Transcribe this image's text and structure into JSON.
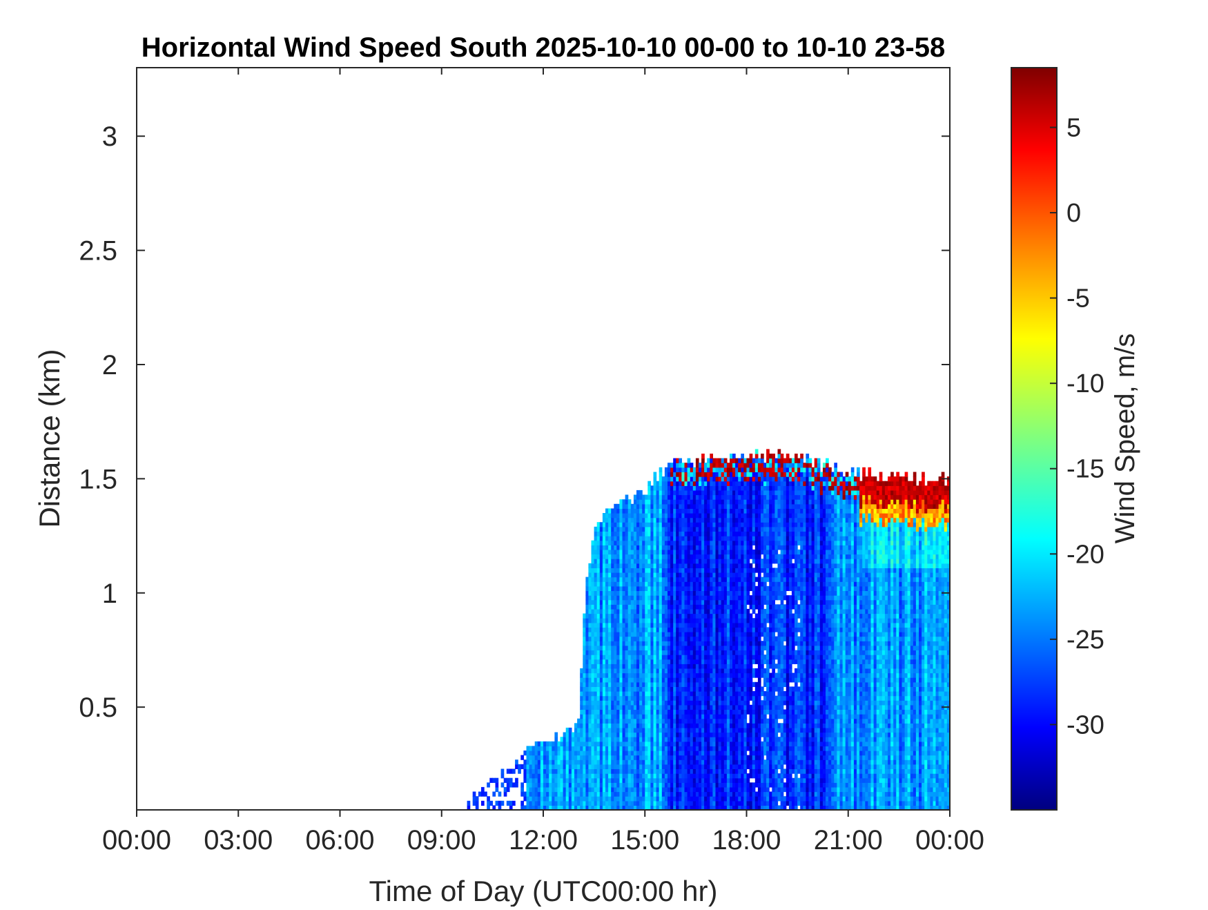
{
  "chart_data": {
    "type": "heatmap",
    "title": "Horizontal Wind Speed South 2025-10-10 00-00 to 10-10 23-58",
    "xlabel": "Time of Day (UTC00:00 hr)",
    "ylabel": "Distance (km)",
    "colorbar_label": "Wind Speed, m/s",
    "x_ticks": [
      "00:00",
      "03:00",
      "06:00",
      "09:00",
      "12:00",
      "15:00",
      "18:00",
      "21:00",
      "00:00"
    ],
    "x_range_hours": [
      0,
      24
    ],
    "y_ticks": [
      0.5,
      1,
      1.5,
      2,
      2.5,
      3
    ],
    "y_tick_labels": [
      "0.5",
      "1",
      "1.5",
      "2",
      "2.5",
      "3"
    ],
    "ylim": [
      0.05,
      3.3
    ],
    "colorbar_ticks": [
      5,
      0,
      -5,
      -10,
      -15,
      -20,
      -25,
      -30
    ],
    "colorbar_tick_labels": [
      "5",
      "0",
      "-5",
      "-10",
      "-15",
      "-20",
      "-25",
      "-30"
    ],
    "clim": [
      -35,
      8.5
    ],
    "colormap": "jet",
    "grid": false,
    "data_top_km": [
      {
        "hour": 11.5,
        "top": 0.33
      },
      {
        "hour": 12.5,
        "top": 0.36
      },
      {
        "hour": 13.0,
        "top": 0.42
      },
      {
        "hour": 13.2,
        "top": 1.02
      },
      {
        "hour": 13.5,
        "top": 1.28
      },
      {
        "hour": 14.0,
        "top": 1.35
      },
      {
        "hour": 15.0,
        "top": 1.45
      },
      {
        "hour": 15.8,
        "top": 1.57
      },
      {
        "hour": 19.0,
        "top": 1.6
      },
      {
        "hour": 21.0,
        "top": 1.52
      },
      {
        "hour": 24.0,
        "top": 1.48
      }
    ],
    "notes": []
  }
}
